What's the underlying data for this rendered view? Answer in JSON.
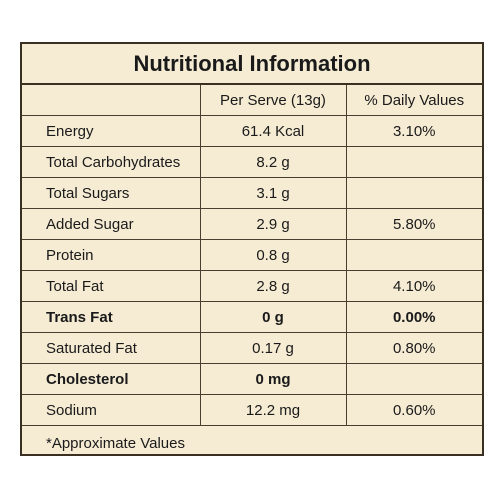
{
  "label": {
    "title": "Nutritional Information",
    "columns": {
      "name": "",
      "per_serve": "Per Serve (13g)",
      "daily_values": "% Daily Values"
    },
    "rows": [
      {
        "name": "Energy",
        "value": "61.4 Kcal",
        "dv": "3.10%",
        "bold": false
      },
      {
        "name": "Total Carbohydrates",
        "value": "8.2 g",
        "dv": "",
        "bold": false
      },
      {
        "name": "Total Sugars",
        "value": "3.1 g",
        "dv": "",
        "bold": false
      },
      {
        "name": "Added Sugar",
        "value": "2.9 g",
        "dv": "5.80%",
        "bold": false
      },
      {
        "name": "Protein",
        "value": "0.8 g",
        "dv": "",
        "bold": false
      },
      {
        "name": "Total Fat",
        "value": "2.8 g",
        "dv": "4.10%",
        "bold": false
      },
      {
        "name": "Trans Fat",
        "value": "0 g",
        "dv": "0.00%",
        "bold": true
      },
      {
        "name": "Saturated Fat",
        "value": "0.17 g",
        "dv": "0.80%",
        "bold": false
      },
      {
        "name": "Cholesterol",
        "value": "0 mg",
        "dv": "",
        "bold": true
      },
      {
        "name": "Sodium",
        "value": "12.2 mg",
        "dv": "0.60%",
        "bold": false
      }
    ],
    "footnote": "*Approximate Values",
    "colors": {
      "background": "#f6ecd4",
      "border": "#3a3022"
    }
  }
}
